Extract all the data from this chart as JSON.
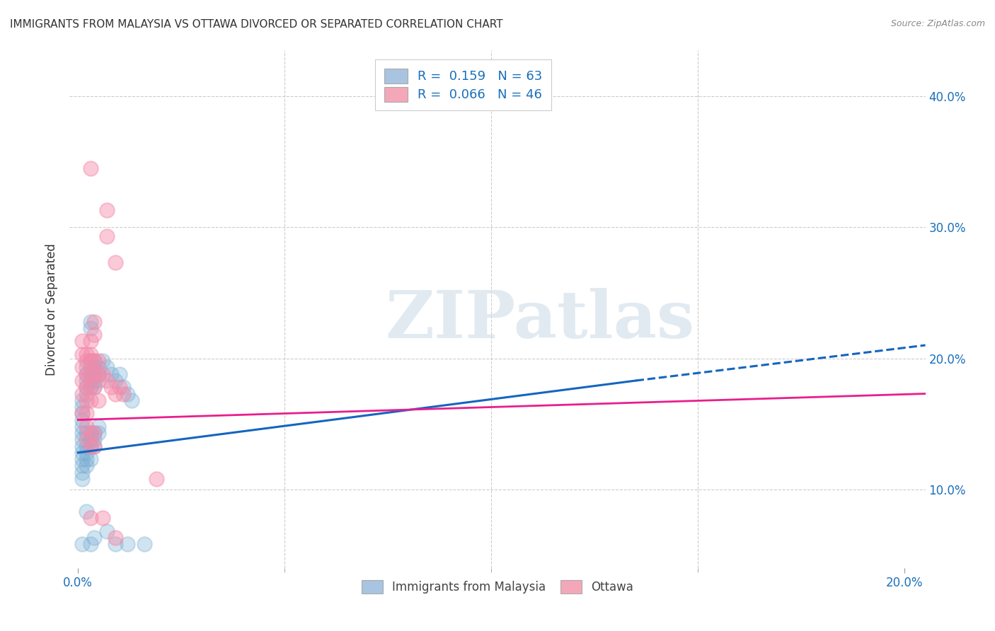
{
  "title": "IMMIGRANTS FROM MALAYSIA VS OTTAWA DIVORCED OR SEPARATED CORRELATION CHART",
  "source": "Source: ZipAtlas.com",
  "xlim": [
    -0.002,
    0.205
  ],
  "ylim": [
    0.04,
    0.435
  ],
  "xlabel_ticks": [
    0.0,
    0.2
  ],
  "xlabel_labels": [
    "0.0%",
    "20.0%"
  ],
  "xlabel_minor": [
    0.05,
    0.1,
    0.15
  ],
  "ylabel_ticks": [
    0.1,
    0.2,
    0.3,
    0.4
  ],
  "ylabel_labels": [
    "10.0%",
    "20.0%",
    "30.0%",
    "40.0%"
  ],
  "watermark": "ZIPatlas",
  "legend_line1": "R =  0.159   N = 63",
  "legend_line2": "R =  0.066   N = 46",
  "blue_line_solid": {
    "x0": 0.0,
    "y0": 0.128,
    "x1": 0.135,
    "y1": 0.183
  },
  "blue_line_dashed": {
    "x0": 0.135,
    "y0": 0.183,
    "x1": 0.205,
    "y1": 0.21
  },
  "pink_line": {
    "x0": 0.0,
    "y0": 0.153,
    "x1": 0.205,
    "y1": 0.173
  },
  "blue_scatter": [
    [
      0.001,
      0.143
    ],
    [
      0.001,
      0.148
    ],
    [
      0.001,
      0.133
    ],
    [
      0.001,
      0.138
    ],
    [
      0.001,
      0.128
    ],
    [
      0.001,
      0.123
    ],
    [
      0.001,
      0.118
    ],
    [
      0.001,
      0.113
    ],
    [
      0.001,
      0.108
    ],
    [
      0.001,
      0.153
    ],
    [
      0.001,
      0.158
    ],
    [
      0.001,
      0.163
    ],
    [
      0.001,
      0.168
    ],
    [
      0.002,
      0.173
    ],
    [
      0.002,
      0.178
    ],
    [
      0.002,
      0.183
    ],
    [
      0.002,
      0.188
    ],
    [
      0.002,
      0.193
    ],
    [
      0.002,
      0.143
    ],
    [
      0.002,
      0.133
    ],
    [
      0.002,
      0.128
    ],
    [
      0.002,
      0.123
    ],
    [
      0.002,
      0.118
    ],
    [
      0.003,
      0.178
    ],
    [
      0.003,
      0.183
    ],
    [
      0.003,
      0.188
    ],
    [
      0.003,
      0.193
    ],
    [
      0.003,
      0.198
    ],
    [
      0.003,
      0.223
    ],
    [
      0.003,
      0.228
    ],
    [
      0.003,
      0.143
    ],
    [
      0.003,
      0.138
    ],
    [
      0.003,
      0.133
    ],
    [
      0.003,
      0.123
    ],
    [
      0.004,
      0.198
    ],
    [
      0.004,
      0.193
    ],
    [
      0.004,
      0.188
    ],
    [
      0.004,
      0.183
    ],
    [
      0.004,
      0.178
    ],
    [
      0.004,
      0.143
    ],
    [
      0.004,
      0.138
    ],
    [
      0.004,
      0.133
    ],
    [
      0.005,
      0.193
    ],
    [
      0.005,
      0.188
    ],
    [
      0.005,
      0.183
    ],
    [
      0.005,
      0.148
    ],
    [
      0.005,
      0.143
    ],
    [
      0.006,
      0.198
    ],
    [
      0.007,
      0.193
    ],
    [
      0.008,
      0.188
    ],
    [
      0.009,
      0.183
    ],
    [
      0.01,
      0.188
    ],
    [
      0.011,
      0.178
    ],
    [
      0.012,
      0.173
    ],
    [
      0.013,
      0.168
    ],
    [
      0.002,
      0.083
    ],
    [
      0.004,
      0.063
    ],
    [
      0.007,
      0.068
    ],
    [
      0.001,
      0.058
    ],
    [
      0.003,
      0.058
    ],
    [
      0.009,
      0.058
    ],
    [
      0.012,
      0.058
    ],
    [
      0.016,
      0.058
    ]
  ],
  "pink_scatter": [
    [
      0.001,
      0.158
    ],
    [
      0.001,
      0.173
    ],
    [
      0.001,
      0.183
    ],
    [
      0.001,
      0.193
    ],
    [
      0.001,
      0.203
    ],
    [
      0.001,
      0.213
    ],
    [
      0.002,
      0.158
    ],
    [
      0.002,
      0.168
    ],
    [
      0.002,
      0.178
    ],
    [
      0.002,
      0.188
    ],
    [
      0.002,
      0.198
    ],
    [
      0.002,
      0.203
    ],
    [
      0.002,
      0.148
    ],
    [
      0.002,
      0.138
    ],
    [
      0.003,
      0.203
    ],
    [
      0.003,
      0.213
    ],
    [
      0.003,
      0.198
    ],
    [
      0.003,
      0.188
    ],
    [
      0.003,
      0.178
    ],
    [
      0.003,
      0.168
    ],
    [
      0.003,
      0.143
    ],
    [
      0.003,
      0.133
    ],
    [
      0.004,
      0.228
    ],
    [
      0.004,
      0.218
    ],
    [
      0.004,
      0.198
    ],
    [
      0.004,
      0.188
    ],
    [
      0.004,
      0.178
    ],
    [
      0.004,
      0.143
    ],
    [
      0.004,
      0.133
    ],
    [
      0.005,
      0.198
    ],
    [
      0.005,
      0.188
    ],
    [
      0.005,
      0.168
    ],
    [
      0.006,
      0.188
    ],
    [
      0.007,
      0.183
    ],
    [
      0.008,
      0.178
    ],
    [
      0.009,
      0.173
    ],
    [
      0.01,
      0.178
    ],
    [
      0.011,
      0.173
    ],
    [
      0.019,
      0.108
    ],
    [
      0.003,
      0.345
    ],
    [
      0.007,
      0.313
    ],
    [
      0.007,
      0.293
    ],
    [
      0.009,
      0.273
    ],
    [
      0.003,
      0.078
    ],
    [
      0.006,
      0.078
    ],
    [
      0.009,
      0.063
    ]
  ],
  "blue_dot_color": "#7bafd4",
  "pink_dot_color": "#f48baa",
  "blue_line_color": "#1565c0",
  "pink_line_color": "#e91e8c",
  "blue_legend_color": "#a8c4e0",
  "pink_legend_color": "#f4a7b9",
  "grid_color": "#cccccc",
  "watermark_color": "#d0dde8",
  "legend_text_color": "#1a6fba",
  "title_color": "#333333",
  "ylabel_label": "Divorced or Separated"
}
